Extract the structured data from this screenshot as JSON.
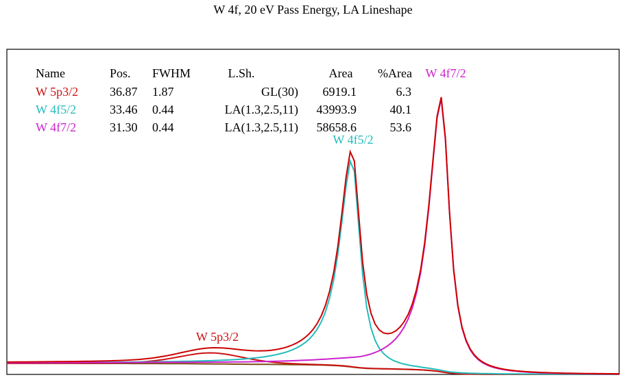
{
  "chart_data": {
    "type": "line",
    "title": "W 4f, 20 eV Pass Energy, LA Lineshape",
    "xlabel": "",
    "ylabel": "",
    "xlim": [
      41.8,
      27.0
    ],
    "x_reversed": true,
    "ylim": [
      0,
      100
    ],
    "grid": false,
    "axes_ticks": false,
    "table": {
      "headers": [
        "Name",
        "Pos.",
        "FWHM",
        "L.Sh.",
        "Area",
        "%Area"
      ],
      "rows": [
        [
          "W 5p3/2",
          "36.87",
          "1.87",
          "GL(30)",
          "6919.1",
          "6.3"
        ],
        [
          "W 4f5/2",
          "33.46",
          "0.44",
          "LA(1.3,2.5,11)",
          "43993.9",
          "40.1"
        ],
        [
          "W 4f7/2",
          "31.30",
          "0.44",
          "LA(1.3,2.5,11)",
          "58658.6",
          "53.6"
        ]
      ]
    },
    "components": [
      {
        "name": "W 5p3/2",
        "position": 36.87,
        "fwhm": 1.87,
        "lineshape": "GL(30)",
        "height": 3.4,
        "color": "#cc1111"
      },
      {
        "name": "W 4f5/2",
        "position": 33.46,
        "fwhm": 0.44,
        "lineshape": "LA(1.3,2.5,11)",
        "height": 64,
        "color": "#22bbbb"
      },
      {
        "name": "W 4f7/2",
        "position": 31.3,
        "fwhm": 0.44,
        "lineshape": "LA(1.3,2.5,11)",
        "height": 84,
        "color": "#cc22cc"
      }
    ],
    "background": {
      "type": "Shirley",
      "high_be_level": 3.4,
      "low_be_level": 0,
      "color": "#7a4a12"
    },
    "envelope_color": "#cc0000",
    "peak_labels": [
      "W 4f7/2",
      "W 4f5/2",
      "W 5p3/2"
    ]
  }
}
